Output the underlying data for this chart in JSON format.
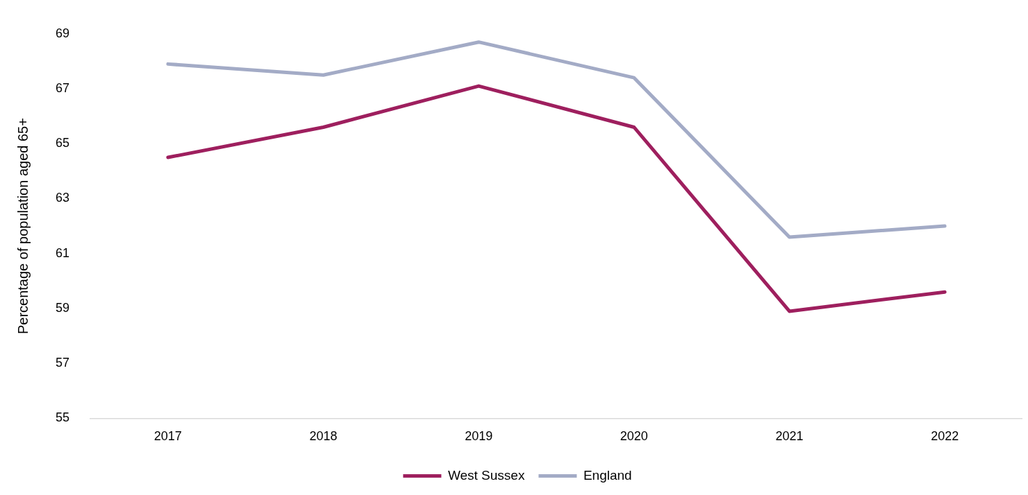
{
  "chart_data": {
    "type": "line",
    "ylabel": "Percentage of population aged 65+",
    "categories": [
      "2017",
      "2018",
      "2019",
      "2020",
      "2021",
      "2022"
    ],
    "series": [
      {
        "name": "West Sussex",
        "color": "#9e1f5e",
        "values": [
          64.5,
          65.6,
          67.1,
          65.6,
          58.9,
          59.6
        ]
      },
      {
        "name": "England",
        "color": "#a3abc6",
        "values": [
          67.9,
          67.5,
          68.7,
          67.4,
          61.6,
          62.0
        ]
      }
    ],
    "ylim": [
      55,
      69
    ],
    "yticks": [
      55,
      57,
      59,
      61,
      63,
      65,
      67,
      69
    ],
    "grid": false,
    "legend": "bottom",
    "marker": "none",
    "line_style": "solid"
  }
}
